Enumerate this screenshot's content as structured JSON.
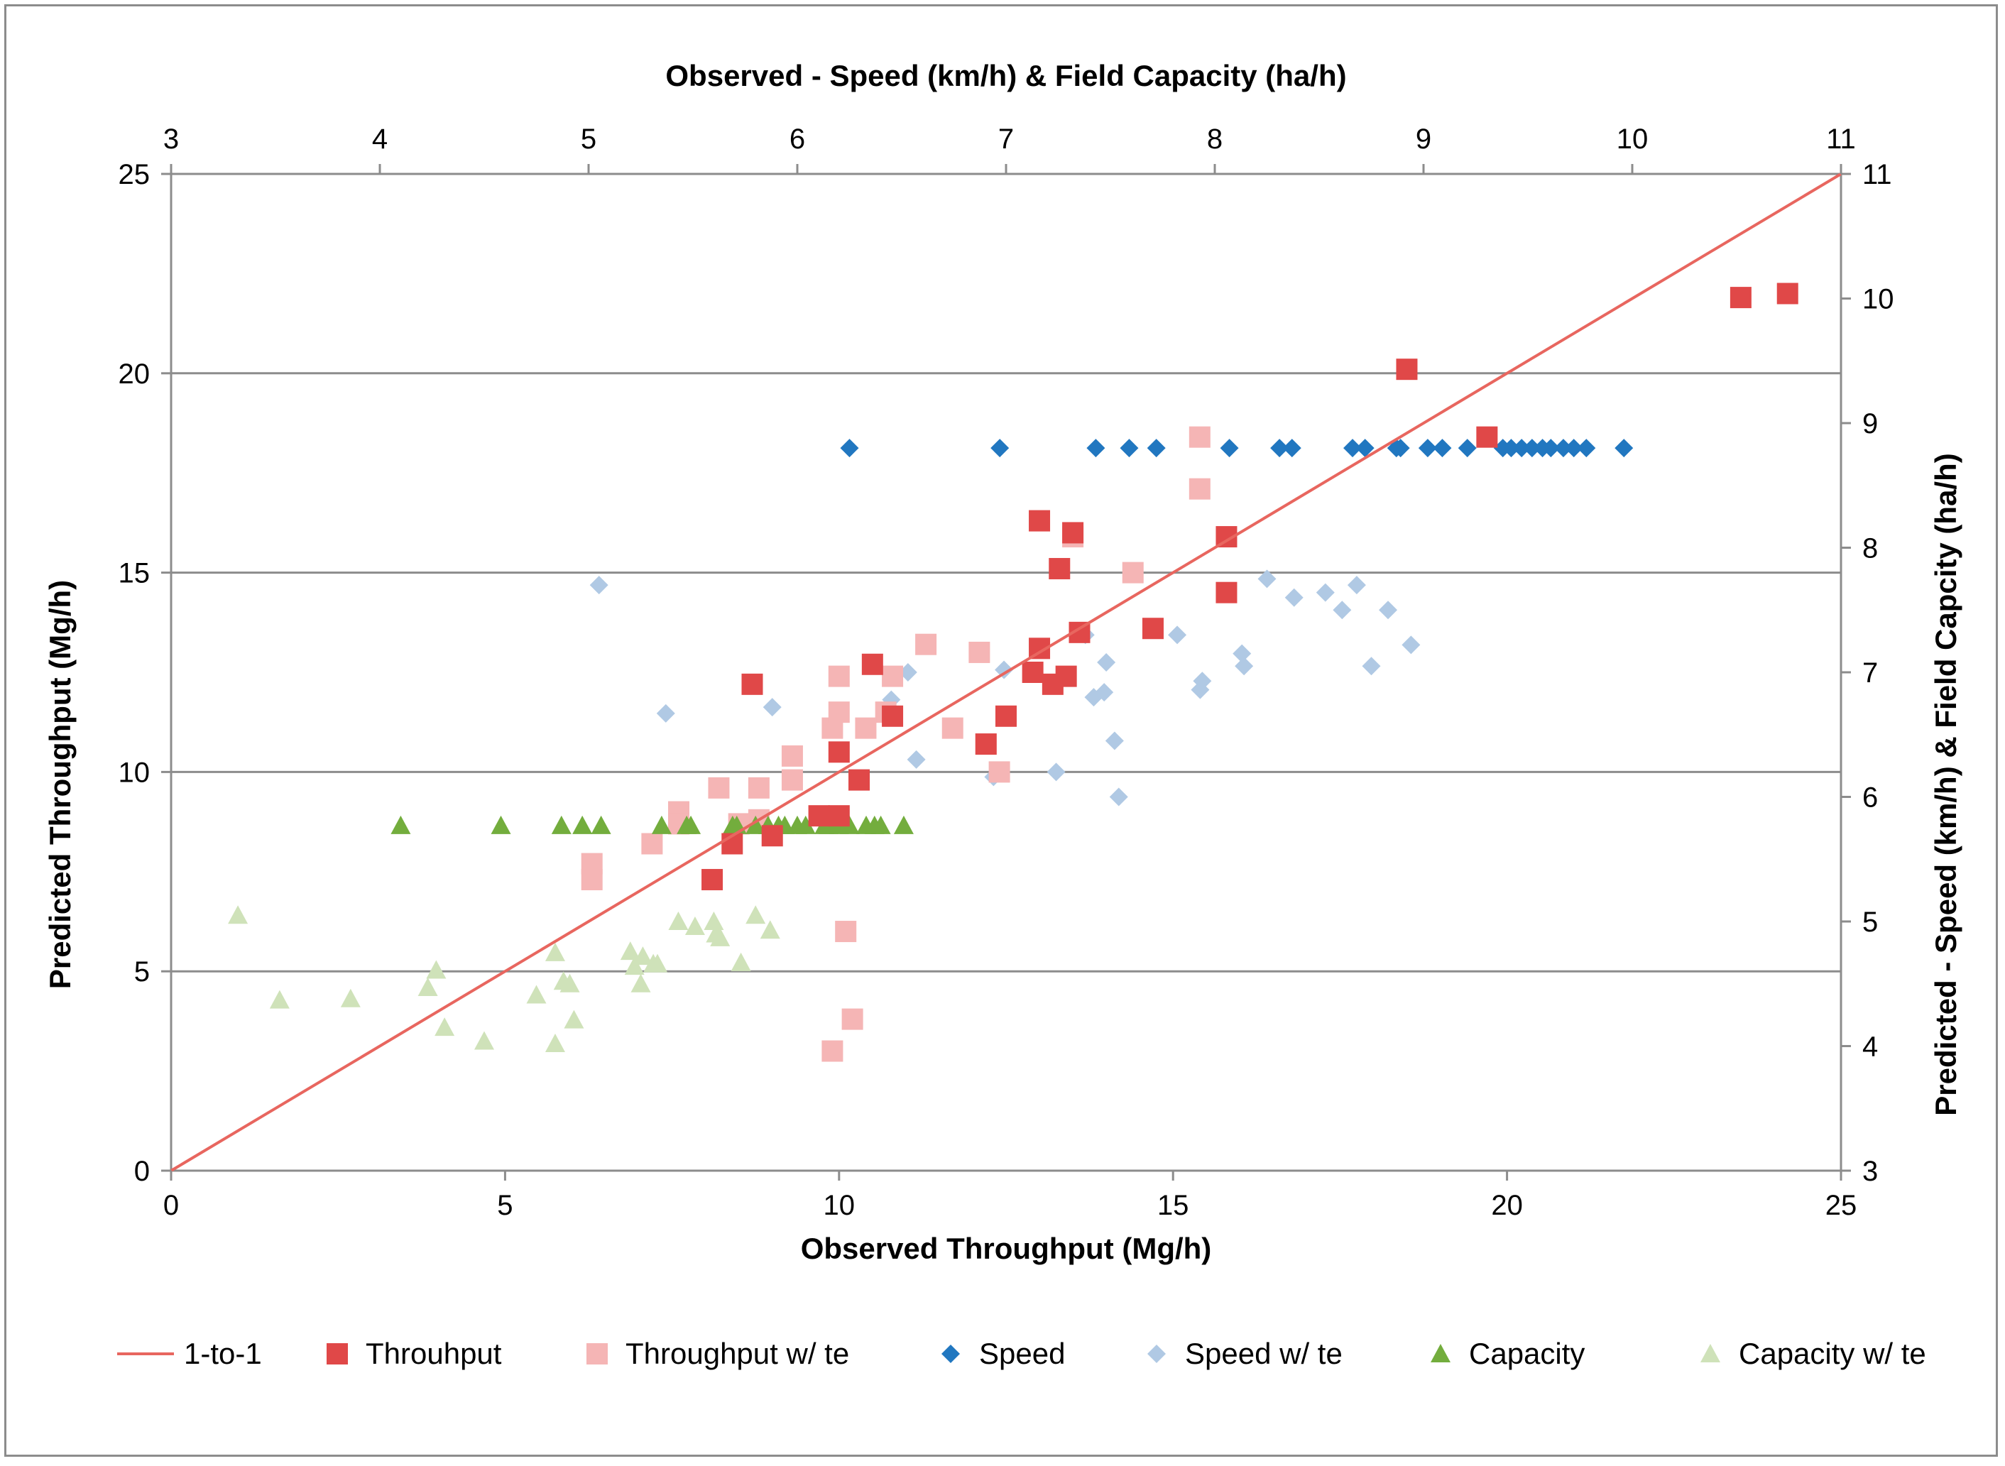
{
  "chart_data": {
    "type": "scatter",
    "title": "",
    "xlabel": "Observed Throughput (Mg/h)",
    "ylabel": "Predicted Throughput (Mg/h)",
    "x2label": "Observed - Speed (km/h) & Field Capacity (ha/h)",
    "y2label": "Predicted - Speed (km/h) & Field Capcity (ha/h)",
    "xlim": [
      0,
      25
    ],
    "ylim": [
      0,
      25
    ],
    "x2lim": [
      3,
      11
    ],
    "y2lim": [
      3,
      11
    ],
    "xticks": [
      "0",
      "5",
      "10",
      "15",
      "20",
      "25"
    ],
    "yticks": [
      "0",
      "5",
      "10",
      "15",
      "20",
      "25"
    ],
    "x2ticks": [
      "3",
      "4",
      "5",
      "6",
      "7",
      "8",
      "9",
      "10",
      "11"
    ],
    "y2ticks": [
      "3",
      "4",
      "5",
      "6",
      "7",
      "8",
      "9",
      "10",
      "11"
    ],
    "grid": "horizontal",
    "legend_position": "bottom",
    "colors": {
      "line": "#e8665f",
      "throughput": "#e04848",
      "throughput_te": "#f5b5b5",
      "speed": "#2177c0",
      "speed_te": "#b0c9e4",
      "capacity": "#73ad3d",
      "capacity_te": "#cfe2b9",
      "grid": "#8c8c8c",
      "axis": "#8c8c8c"
    },
    "legend": [
      {
        "label": "1-to-1",
        "key": "line",
        "marker": "line"
      },
      {
        "label": "Throuhput",
        "key": "throughput",
        "marker": "square"
      },
      {
        "label": "Throughput w/ te",
        "key": "throughput_te",
        "marker": "square"
      },
      {
        "label": "Speed",
        "key": "speed",
        "marker": "diamond"
      },
      {
        "label": "Speed w/ te",
        "key": "speed_te",
        "marker": "diamond"
      },
      {
        "label": "Capacity",
        "key": "capacity",
        "marker": "triangle"
      },
      {
        "label": "Capacity w/ te",
        "key": "capacity_te",
        "marker": "triangle"
      }
    ],
    "series": [
      {
        "name": "1-to-1",
        "key": "line",
        "axis": "primary",
        "kind": "line",
        "x": [
          0,
          25
        ],
        "y": [
          0,
          25
        ]
      },
      {
        "name": "Throuhput",
        "key": "throughput",
        "axis": "primary",
        "kind": "square",
        "x": [
          8.7,
          23.5,
          24.2,
          18.5,
          19.7,
          13.0,
          13.5,
          13.3,
          15.8,
          15.8,
          13.6,
          14.7,
          12.9,
          13.0,
          13.2,
          13.4,
          10.8,
          10.5,
          12.5,
          12.2,
          10.0,
          10.3,
          9.7,
          10.0,
          8.4,
          9.0,
          8.1
        ],
        "y": [
          12.2,
          21.9,
          22.0,
          20.1,
          18.4,
          16.3,
          16.0,
          15.1,
          15.9,
          14.5,
          13.5,
          13.6,
          12.5,
          13.1,
          12.2,
          12.4,
          11.4,
          12.7,
          11.4,
          10.7,
          10.5,
          9.8,
          8.9,
          8.9,
          8.2,
          8.4,
          7.3
        ]
      },
      {
        "name": "Throughput w/ te",
        "key": "throughput_te",
        "axis": "primary",
        "kind": "square",
        "x": [
          15.4,
          15.4,
          13.5,
          14.4,
          11.3,
          10.8,
          12.1,
          12.4,
          12.2,
          11.7,
          10.0,
          10.7,
          10.4,
          9.9,
          10.0,
          9.3,
          9.3,
          8.8,
          8.2,
          7.6,
          7.6,
          7.2,
          6.3,
          6.3,
          10.2,
          9.9,
          8.8,
          8.5,
          10.1
        ],
        "y": [
          18.4,
          17.1,
          15.9,
          15.0,
          13.2,
          12.4,
          13.0,
          10.0,
          10.7,
          11.1,
          12.4,
          11.5,
          11.1,
          11.1,
          11.5,
          10.4,
          9.8,
          9.6,
          9.6,
          9.0,
          8.7,
          8.2,
          7.7,
          7.3,
          3.8,
          3.0,
          8.8,
          8.7,
          6.0
        ]
      },
      {
        "name": "Speed",
        "key": "speed",
        "axis": "secondary",
        "kind": "diamond",
        "x": [
          6.25,
          6.97,
          7.43,
          7.59,
          7.72,
          8.07,
          8.31,
          8.37,
          8.66,
          8.72,
          8.87,
          8.89,
          9.02,
          9.09,
          9.21,
          9.38,
          9.42,
          9.47,
          9.52,
          9.57,
          9.61,
          9.67,
          9.72,
          9.78,
          9.96
        ],
        "y": [
          8.8,
          8.8,
          8.8,
          8.8,
          8.8,
          8.8,
          8.8,
          8.8,
          8.8,
          8.8,
          8.8,
          8.8,
          8.8,
          8.8,
          8.8,
          8.8,
          8.8,
          8.8,
          8.8,
          8.8,
          8.8,
          8.8,
          8.8,
          8.8,
          8.8
        ]
      },
      {
        "name": "Speed w/ te",
        "key": "speed_te",
        "axis": "secondary",
        "kind": "diamond",
        "x": [
          5.05,
          5.37,
          5.88,
          6.45,
          6.53,
          6.57,
          7.38,
          7.42,
          7.48,
          7.52,
          7.54,
          7.82,
          7.93,
          7.94,
          8.13,
          8.14,
          8.25,
          8.38,
          8.53,
          8.61,
          8.68,
          8.83,
          8.75,
          8.94,
          6.99,
          7.47,
          6.94,
          7.24
        ],
        "y": [
          7.7,
          6.67,
          6.72,
          6.78,
          7.0,
          6.3,
          7.3,
          6.8,
          7.08,
          6.45,
          6.0,
          7.3,
          6.86,
          6.93,
          7.15,
          7.05,
          7.75,
          7.6,
          7.64,
          7.5,
          7.7,
          7.5,
          7.05,
          7.22,
          7.02,
          6.84,
          6.16,
          6.2
        ],
        "note": "positions estimated"
      },
      {
        "name": "Capacity",
        "key": "capacity",
        "axis": "secondary",
        "kind": "triangle",
        "x": [
          4.1,
          4.58,
          4.87,
          4.97,
          5.06,
          5.35,
          5.47,
          5.49,
          5.69,
          5.71,
          5.8,
          5.86,
          5.91,
          5.94,
          6.0,
          6.04,
          6.13,
          6.15,
          6.2,
          6.25,
          6.33,
          6.37,
          6.4,
          6.51
        ],
        "y": [
          5.77,
          5.77,
          5.77,
          5.77,
          5.77,
          5.77,
          5.77,
          5.77,
          5.77,
          5.77,
          5.77,
          5.77,
          5.77,
          5.77,
          5.77,
          5.77,
          5.77,
          5.77,
          5.77,
          5.77,
          5.77,
          5.77,
          5.77,
          5.77
        ]
      },
      {
        "name": "Capacity w/ te",
        "key": "capacity_te",
        "axis": "secondary",
        "kind": "triangle",
        "x": [
          3.32,
          3.52,
          3.86,
          4.23,
          4.27,
          4.31,
          4.5,
          4.75,
          4.84,
          4.84,
          4.88,
          4.91,
          4.93,
          5.2,
          5.22,
          5.25,
          5.26,
          5.31,
          5.33,
          5.43,
          5.51,
          5.6,
          5.61,
          5.63,
          5.73,
          5.8,
          5.87
        ],
        "y": [
          5.05,
          4.37,
          4.38,
          4.47,
          4.61,
          4.15,
          4.04,
          4.41,
          4.75,
          4.02,
          4.52,
          4.5,
          4.21,
          4.76,
          4.64,
          4.5,
          4.72,
          4.66,
          4.66,
          5.0,
          4.96,
          5.0,
          4.9,
          4.87,
          4.67,
          5.05,
          4.93
        ],
        "note": "positions estimated"
      }
    ]
  }
}
